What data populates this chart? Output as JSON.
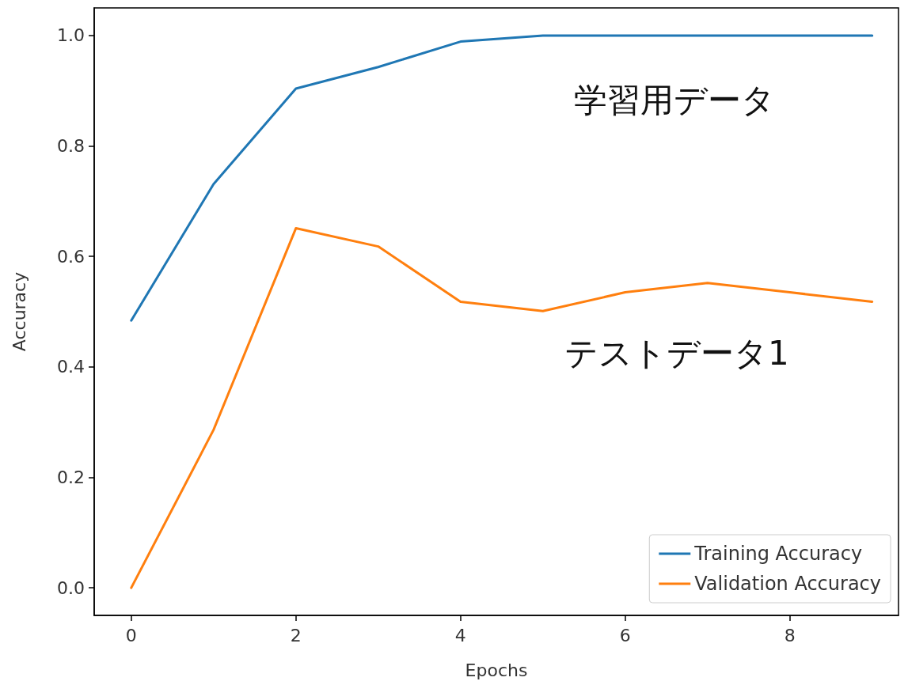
{
  "chart_data": {
    "type": "line",
    "xlabel": "Epochs",
    "ylabel": "Accuracy",
    "x": [
      0,
      1,
      2,
      3,
      4,
      5,
      6,
      7,
      8,
      9
    ],
    "series": [
      {
        "name": "Training Accuracy",
        "color": "#1f77b4",
        "values": [
          0.484,
          0.731,
          0.904,
          0.943,
          0.989,
          1.0,
          1.0,
          1.0,
          1.0,
          1.0
        ]
      },
      {
        "name": "Validation Accuracy",
        "color": "#ff7f0e",
        "values": [
          0.0,
          0.286,
          0.651,
          0.618,
          0.518,
          0.501,
          0.535,
          0.552,
          0.535,
          0.518
        ]
      }
    ],
    "xlim": [
      -0.45,
      9.32
    ],
    "xticks": [
      0,
      2,
      4,
      6,
      8
    ],
    "ylim": [
      -0.05,
      1.05
    ],
    "yticks": [
      {
        "value": 0,
        "label": "0.0"
      },
      {
        "value": 0.2,
        "label": "0.2"
      },
      {
        "value": 0.4,
        "label": "0.4"
      },
      {
        "value": 0.6,
        "label": "0.6"
      },
      {
        "value": 0.8,
        "label": "0.8"
      },
      {
        "value": 1,
        "label": "1.0"
      }
    ],
    "annotations": [
      "学習用データ",
      "テストデータ1"
    ],
    "legend": "bottom right",
    "grid": false,
    "marker": "none",
    "line_style": "solid"
  }
}
